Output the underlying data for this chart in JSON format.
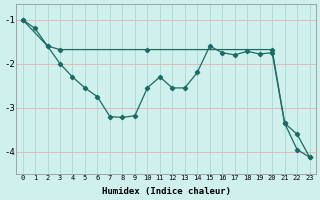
{
  "xlabel": "Humidex (Indice chaleur)",
  "background_color": "#cff0ec",
  "grid_color": "#aad8d3",
  "line_color": "#1a6b63",
  "xmin": -0.5,
  "xmax": 23.5,
  "ymin": -4.5,
  "ymax": -0.65,
  "yticks": [
    -1,
    -2,
    -3,
    -4
  ],
  "xticks": [
    0,
    1,
    2,
    3,
    4,
    5,
    6,
    7,
    8,
    9,
    10,
    11,
    12,
    13,
    14,
    15,
    16,
    17,
    18,
    19,
    20,
    21,
    22,
    23
  ],
  "line1_x": [
    0,
    1,
    2,
    3,
    4,
    5,
    6,
    7,
    8,
    9,
    10,
    11,
    12,
    13,
    14,
    15,
    16,
    17,
    18,
    19,
    20,
    21,
    22,
    23
  ],
  "line1_y": [
    -1.0,
    -1.2,
    -1.6,
    -2.0,
    -2.3,
    -2.55,
    -2.75,
    -3.2,
    -3.22,
    -3.18,
    -2.55,
    -2.3,
    -2.55,
    -2.55,
    -2.2,
    -1.6,
    -1.75,
    -1.8,
    -1.72,
    -1.78,
    -1.75,
    -3.35,
    -3.6,
    -4.12
  ],
  "line2_x": [
    0,
    2,
    3,
    10,
    20,
    21,
    22,
    23
  ],
  "line2_y": [
    -1.0,
    -1.6,
    -1.68,
    -1.68,
    -1.68,
    -3.35,
    -3.95,
    -4.12
  ]
}
